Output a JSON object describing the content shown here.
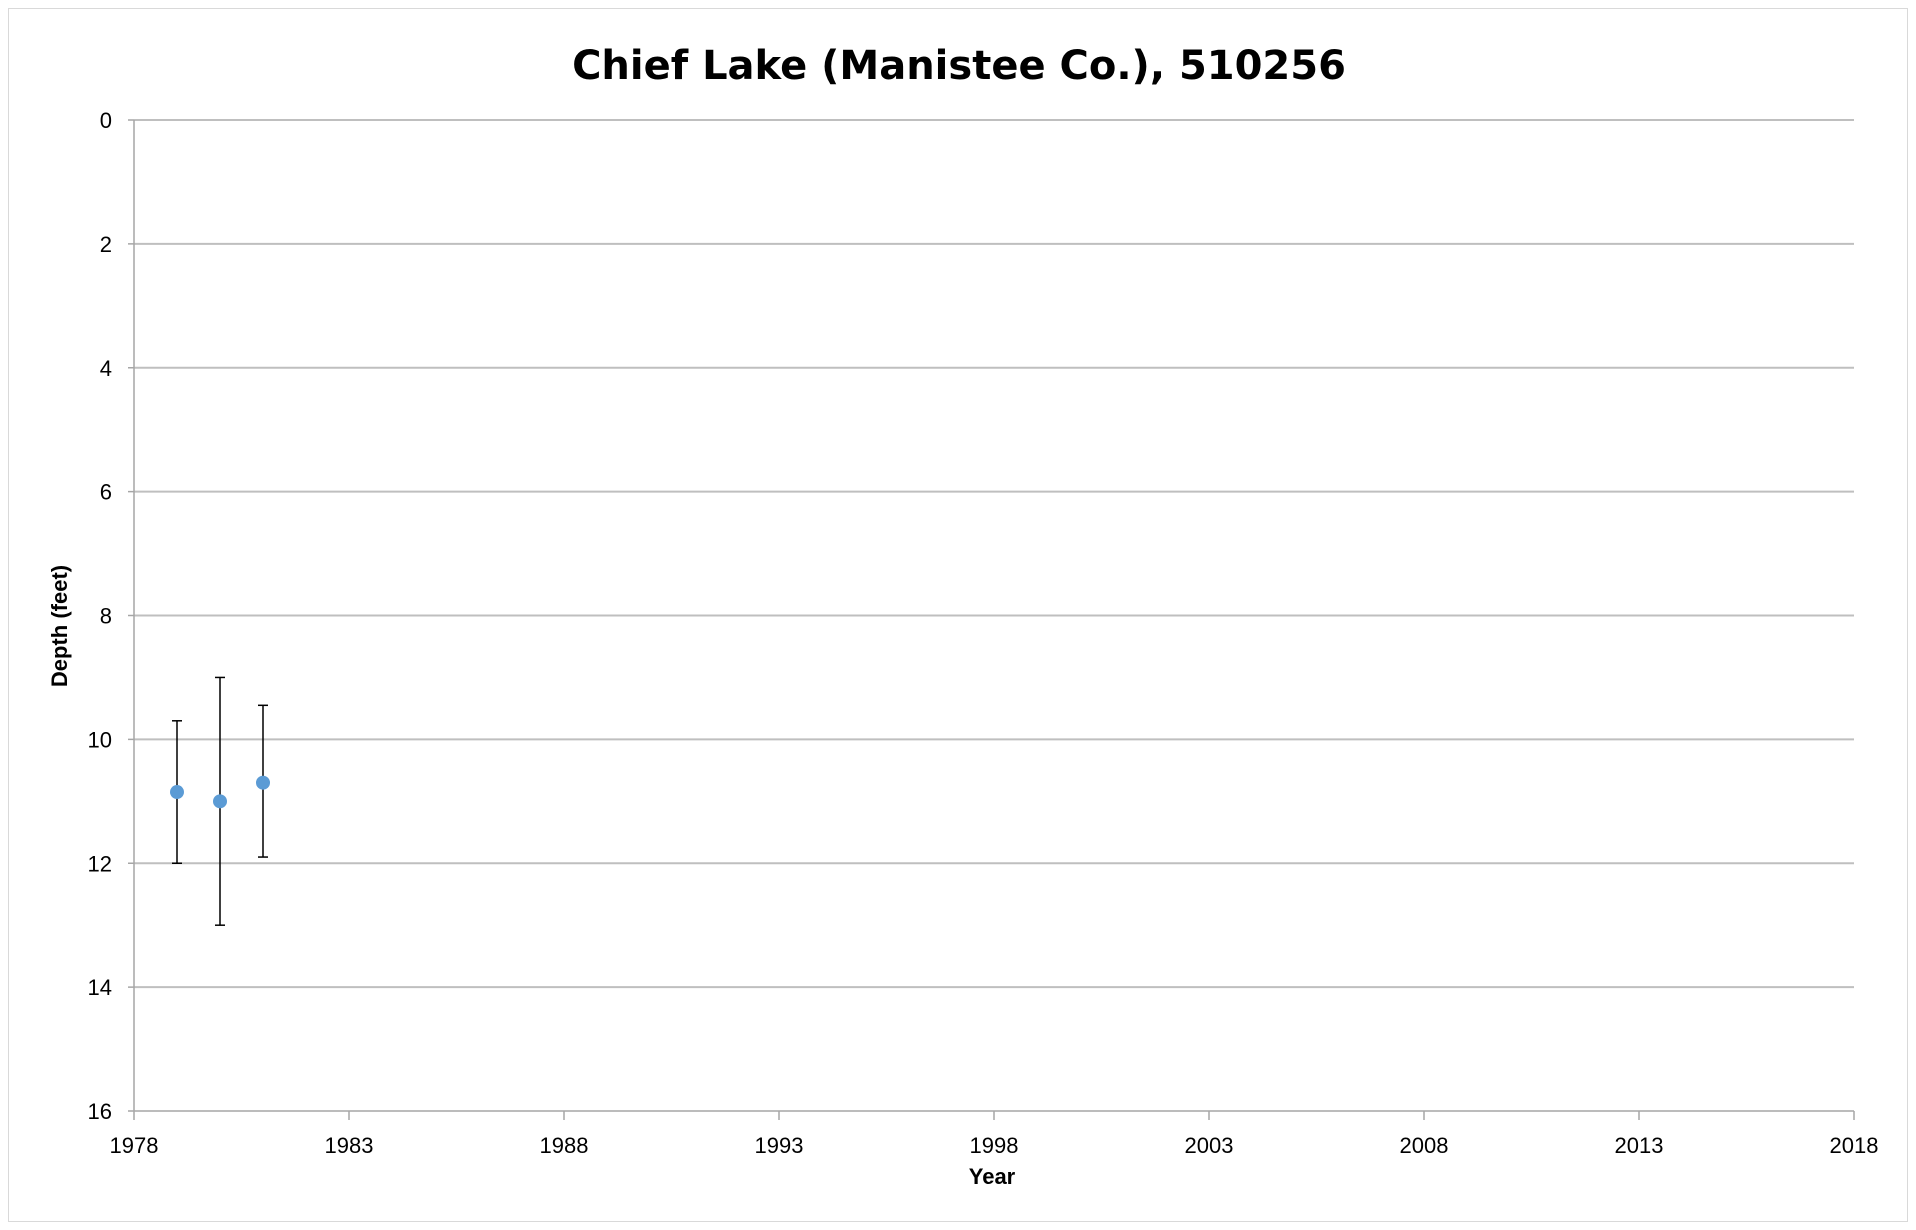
{
  "chart_data": {
    "type": "scatter",
    "title": "Chief Lake (Manistee Co.), 510256",
    "xlabel": "Year",
    "ylabel": "Depth (feet)",
    "xlim": [
      1978,
      2018
    ],
    "ylim": [
      0,
      16
    ],
    "y_inverted": true,
    "grid": "horizontal",
    "x_ticks": [
      "1978",
      "1983",
      "1988",
      "1993",
      "1998",
      "2003",
      "2008",
      "2013",
      "2018"
    ],
    "y_ticks": [
      "0",
      "2",
      "4",
      "6",
      "8",
      "10",
      "12",
      "14",
      "16"
    ],
    "marker_color": "#5b9bd5",
    "points": [
      {
        "x": 1979,
        "y": 10.85,
        "err_low": 9.7,
        "err_high": 12.0
      },
      {
        "x": 1980,
        "y": 11.0,
        "err_low": 9.0,
        "err_high": 13.0
      },
      {
        "x": 1981,
        "y": 10.7,
        "err_low": 9.45,
        "err_high": 11.9
      }
    ]
  }
}
